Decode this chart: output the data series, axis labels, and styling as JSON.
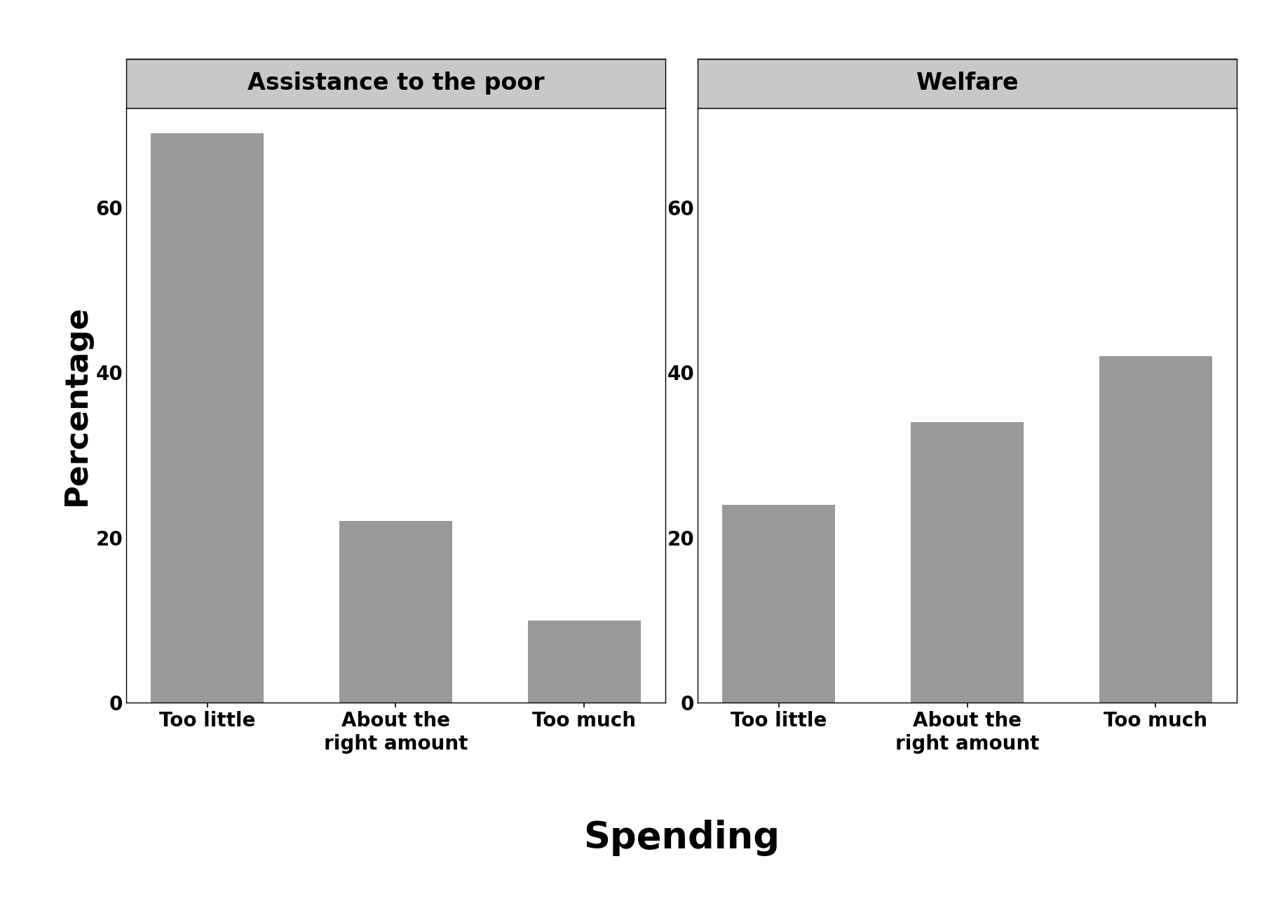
{
  "panel1_title": "Assistance to the poor",
  "panel2_title": "Welfare",
  "categories": [
    "Too little",
    "About the\nright amount",
    "Too much"
  ],
  "panel1_values": [
    69,
    22,
    10
  ],
  "panel2_values": [
    24,
    34,
    42
  ],
  "bar_color": "#999999",
  "ylabel": "Percentage",
  "xlabel": "Spending",
  "ylim": [
    0,
    72
  ],
  "yticks": [
    0,
    20,
    40,
    60
  ],
  "bar_width": 0.6,
  "title_bg_color": "#c8c8c8",
  "axis_label_fontsize": 32,
  "tick_fontsize": 20,
  "panel_title_fontsize": 24,
  "xlabel_fontsize": 38
}
